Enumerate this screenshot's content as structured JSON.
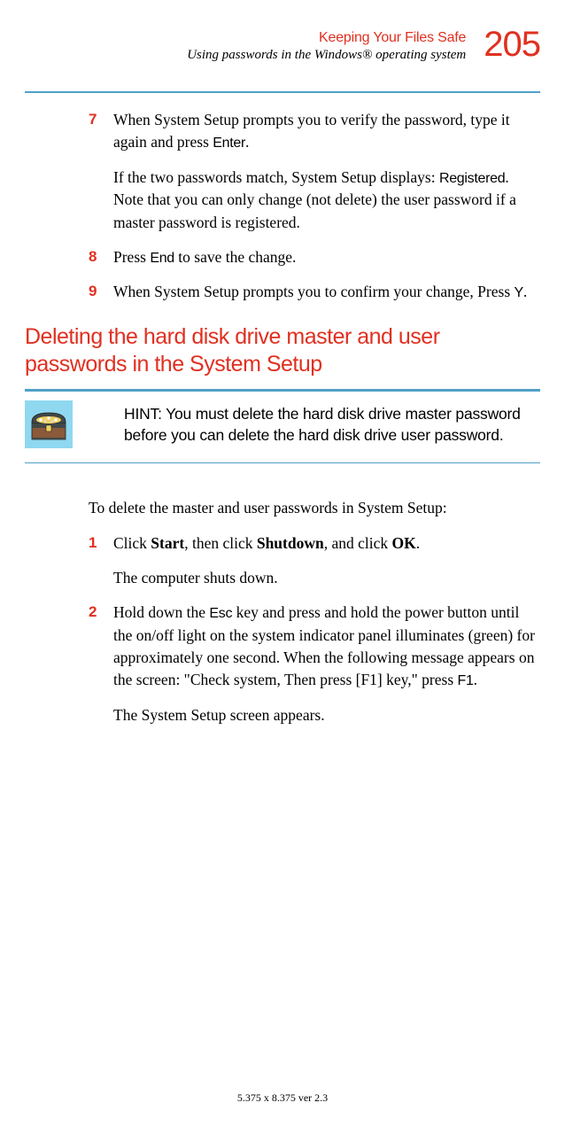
{
  "colors": {
    "accent_red": "#e03020",
    "accent_blue": "#4fa0c8",
    "body_text": "#000000",
    "background": "#ffffff",
    "icon_cyan": "#8fd8f0",
    "icon_dark": "#404848",
    "icon_brown": "#8a5a3a",
    "icon_yellow": "#f0d060"
  },
  "typography": {
    "body_family": "Georgia, Times New Roman, serif",
    "heading_family": "Arial, Helvetica, sans-serif",
    "body_size_pt": 13,
    "heading_size_pt": 19,
    "page_number_size_pt": 30,
    "hint_size_pt": 13
  },
  "header": {
    "chapter": "Keeping Your Files Safe",
    "section": "Using passwords in the Windows® operating system",
    "page_number": "205"
  },
  "steps_a": [
    {
      "num": "7",
      "paras": [
        {
          "runs": [
            {
              "t": "When System Setup prompts you to verify the password, type it again and press "
            },
            {
              "t": "Enter",
              "cond": true
            },
            {
              "t": "."
            }
          ]
        },
        {
          "runs": [
            {
              "t": "If the two passwords match, System Setup displays: "
            },
            {
              "t": "Registered",
              "cond": true
            },
            {
              "t": ". Note that you can only change (not delete) the user password if a master password is registered."
            }
          ]
        }
      ]
    },
    {
      "num": "8",
      "paras": [
        {
          "runs": [
            {
              "t": "Press "
            },
            {
              "t": "End",
              "cond": true
            },
            {
              "t": " to save the change."
            }
          ]
        }
      ]
    },
    {
      "num": "9",
      "paras": [
        {
          "runs": [
            {
              "t": "When System Setup prompts you to confirm your change, Press "
            },
            {
              "t": "Y",
              "cond": true
            },
            {
              "t": "."
            }
          ]
        }
      ]
    }
  ],
  "heading": "Deleting the hard disk drive master and user passwords in the System Setup",
  "hint": "HINT: You must delete the hard disk drive master password before you can delete the hard disk drive user password.",
  "intro": "To delete the master and user passwords in System Setup:",
  "steps_b": [
    {
      "num": "1",
      "paras": [
        {
          "runs": [
            {
              "t": "Click "
            },
            {
              "t": "Start",
              "bold": true
            },
            {
              "t": ", then click "
            },
            {
              "t": "Shutdown",
              "bold": true
            },
            {
              "t": ", and click "
            },
            {
              "t": "OK",
              "bold": true
            },
            {
              "t": "."
            }
          ]
        },
        {
          "runs": [
            {
              "t": "The computer shuts down."
            }
          ]
        }
      ]
    },
    {
      "num": "2",
      "paras": [
        {
          "runs": [
            {
              "t": "Hold down the "
            },
            {
              "t": "Esc",
              "cond": true
            },
            {
              "t": " key and press and hold the power button until the on/off light on the system indicator panel illuminates (green) for approximately one second. When the following message appears on the screen: \"Check system, Then press [F1] key,\" press "
            },
            {
              "t": "F1",
              "cond": true
            },
            {
              "t": "."
            }
          ]
        },
        {
          "runs": [
            {
              "t": "The System Setup screen appears."
            }
          ]
        }
      ]
    }
  ],
  "footer": "5.375 x 8.375 ver 2.3"
}
